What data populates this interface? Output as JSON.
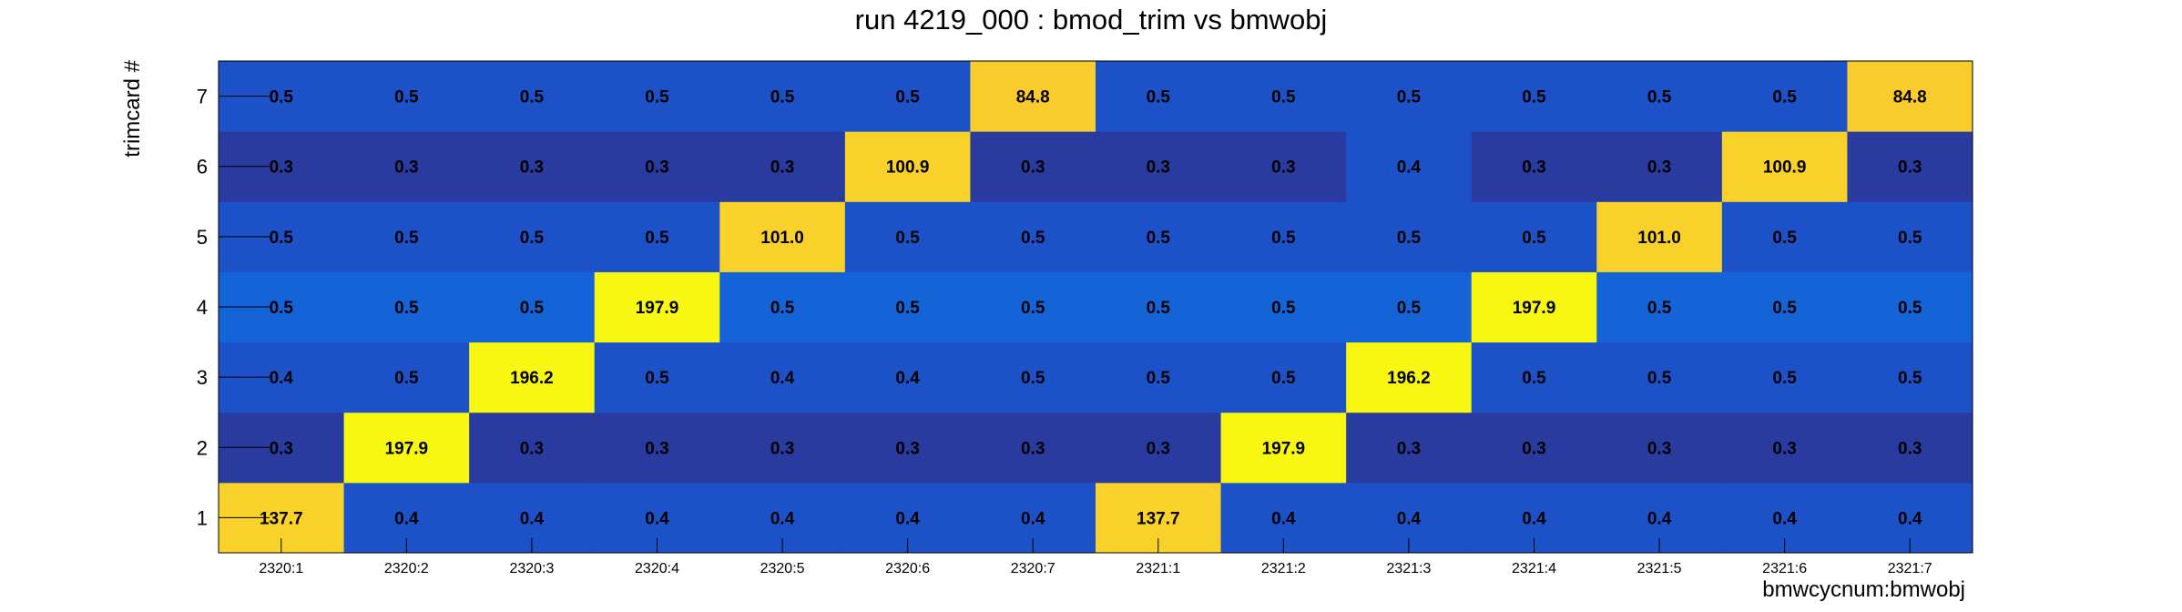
{
  "chart_data": {
    "type": "heatmap",
    "title": "run 4219_000 : bmod_trim vs bmwobj",
    "xlabel": "bmwcycnum:bmwobj",
    "ylabel": "trimcard #",
    "x_categories": [
      "2320:1",
      "2320:2",
      "2320:3",
      "2320:4",
      "2320:5",
      "2320:6",
      "2320:7",
      "2321:1",
      "2321:2",
      "2321:3",
      "2321:4",
      "2321:5",
      "2321:6",
      "2321:7"
    ],
    "y_categories": [
      "1",
      "2",
      "3",
      "4",
      "5",
      "6",
      "7"
    ],
    "values": [
      [
        137.7,
        0.4,
        0.4,
        0.4,
        0.4,
        0.4,
        0.4,
        137.7,
        0.4,
        0.4,
        0.4,
        0.4,
        0.4,
        0.4
      ],
      [
        0.3,
        197.9,
        0.3,
        0.3,
        0.3,
        0.3,
        0.3,
        0.3,
        197.9,
        0.3,
        0.3,
        0.3,
        0.3,
        0.3
      ],
      [
        0.4,
        0.5,
        196.2,
        0.5,
        0.4,
        0.4,
        0.5,
        0.5,
        0.5,
        196.2,
        0.5,
        0.5,
        0.5,
        0.5
      ],
      [
        0.5,
        0.5,
        0.5,
        197.9,
        0.5,
        0.5,
        0.5,
        0.5,
        0.5,
        0.5,
        197.9,
        0.5,
        0.5,
        0.5
      ],
      [
        0.5,
        0.5,
        0.5,
        0.5,
        101.0,
        0.5,
        0.5,
        0.5,
        0.5,
        0.5,
        0.5,
        101.0,
        0.5,
        0.5
      ],
      [
        0.3,
        0.3,
        0.3,
        0.3,
        0.3,
        100.9,
        0.3,
        0.3,
        0.3,
        0.4,
        0.3,
        0.3,
        100.9,
        0.3
      ],
      [
        0.5,
        0.5,
        0.5,
        0.5,
        0.5,
        0.5,
        84.8,
        0.5,
        0.5,
        0.5,
        0.5,
        0.5,
        0.5,
        84.8
      ]
    ],
    "value_format": "0.1f",
    "colors": {
      "low": "#2a3ba0",
      "mid_low": "#1c51c8",
      "mid": "#1464d8",
      "high_peak": "#f7f711",
      "high_mid": "#f8cc2c",
      "high_low": "#f8d22a"
    }
  }
}
